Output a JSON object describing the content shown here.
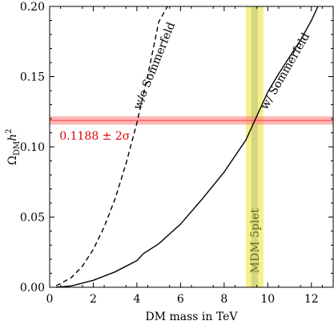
{
  "chart_data": {
    "type": "line",
    "xlabel": "DM mass in TeV",
    "ylabel_main": "Ω",
    "ylabel_sub": "DM",
    "ylabel_h": "h",
    "ylabel_sup": "2",
    "xlim": [
      0,
      13
    ],
    "ylim": [
      0,
      0.2
    ],
    "xticks": [
      0,
      2,
      4,
      6,
      8,
      10,
      12
    ],
    "xtick_labels": [
      "0",
      "2",
      "4",
      "6",
      "8",
      "10",
      "12"
    ],
    "yticks": [
      0,
      0.05,
      0.1,
      0.15,
      0.2
    ],
    "ytick_labels": [
      "0.00",
      "0.05",
      "0.10",
      "0.15",
      "0.20"
    ],
    "grid": false,
    "series": [
      {
        "name": "w/o Sommerfeld",
        "style": "dashed",
        "color": "#000000",
        "x": [
          0.3,
          1.0,
          1.5,
          2.0,
          2.5,
          3.0,
          3.5,
          4.0,
          4.5,
          5.0,
          5.4
        ],
        "y": [
          0.001,
          0.007,
          0.015,
          0.027,
          0.043,
          0.063,
          0.088,
          0.117,
          0.151,
          0.189,
          0.2
        ]
      },
      {
        "name": "w/ Sommerfeld",
        "style": "solid",
        "color": "#000000",
        "x": [
          0.3,
          1,
          2,
          3,
          4,
          4.3,
          5,
          6,
          7,
          8,
          9,
          9.5,
          10,
          10.5,
          11,
          11.5,
          12.0,
          12.3
        ],
        "y": [
          0.0,
          0.001,
          0.005,
          0.011,
          0.019,
          0.024,
          0.031,
          0.045,
          0.063,
          0.082,
          0.105,
          0.122,
          0.139,
          0.152,
          0.164,
          0.176,
          0.19,
          0.2
        ]
      }
    ],
    "band_horizontal": {
      "label": "0.1188 ± 2σ",
      "center": 0.1188,
      "halfwidth": 0.002,
      "color": "#ff7a7a"
    },
    "band_vertical": {
      "label": "MDM 5plet",
      "center": 9.4,
      "halfwidth": 0.4,
      "color": "#f4f08a",
      "inner_color": "#c9c980",
      "inner_halfwidth": 0.15
    },
    "annotations": [
      {
        "text": "w/o Sommerfeld"
      },
      {
        "text": "w/ Sommerfeld"
      }
    ]
  }
}
